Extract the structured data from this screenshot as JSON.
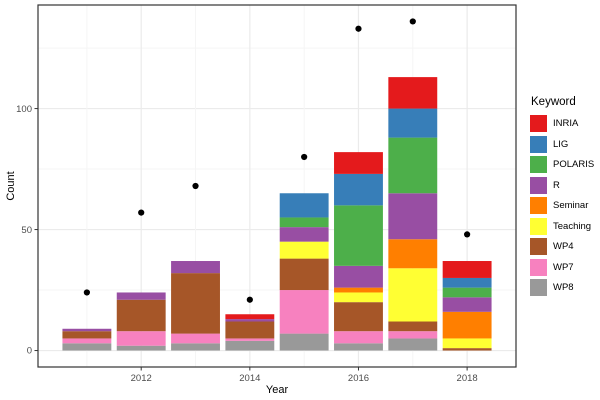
{
  "chart_data": {
    "type": "bar",
    "subtype": "stacked-bars-with-total-points",
    "title": "",
    "xlabel": "Year",
    "ylabel": "Count",
    "categories": [
      2011,
      2012,
      2013,
      2014,
      2015,
      2016,
      2017,
      2018
    ],
    "series": [
      {
        "name": "INRIA",
        "color": "#E41A1C",
        "values": [
          0,
          0,
          0,
          2,
          0,
          9,
          13,
          7
        ]
      },
      {
        "name": "LIG",
        "color": "#377EB8",
        "values": [
          0,
          0,
          0,
          0,
          10,
          13,
          12,
          4
        ]
      },
      {
        "name": "POLARIS",
        "color": "#4DAF4A",
        "values": [
          0,
          0,
          0,
          0,
          4,
          25,
          23,
          4
        ]
      },
      {
        "name": "R",
        "color": "#984EA3",
        "values": [
          1,
          3,
          5,
          1,
          6,
          9,
          19,
          6
        ]
      },
      {
        "name": "Seminar",
        "color": "#FF7F00",
        "values": [
          0,
          0,
          0,
          0,
          0,
          2,
          12,
          11
        ]
      },
      {
        "name": "Teaching",
        "color": "#FFFF33",
        "values": [
          0,
          0,
          0,
          0,
          7,
          4,
          22,
          4
        ]
      },
      {
        "name": "WP4",
        "color": "#A65628",
        "values": [
          3,
          13,
          25,
          7,
          13,
          12,
          4,
          1
        ]
      },
      {
        "name": "WP7",
        "color": "#F781BF",
        "values": [
          2,
          6,
          4,
          1,
          18,
          5,
          3,
          0
        ]
      },
      {
        "name": "WP8",
        "color": "#999999",
        "values": [
          3,
          2,
          3,
          4,
          7,
          3,
          5,
          0
        ]
      }
    ],
    "stack_order_bottom_to_top": [
      "WP8",
      "WP7",
      "WP4",
      "Teaching",
      "Seminar",
      "R",
      "POLARIS",
      "LIG",
      "INRIA"
    ],
    "points": {
      "name": "total-dots",
      "color": "#000000",
      "values": [
        24,
        57,
        68,
        21,
        80,
        133,
        136,
        48
      ]
    },
    "y_ticks": [
      0,
      50,
      100
    ],
    "y_minor_ticks": [
      25,
      75,
      125
    ],
    "x_ticks": [
      2012,
      2014,
      2016,
      2018
    ],
    "ylim": [
      -6.8,
      142.8
    ],
    "xlim": [
      2010.1,
      2018.9
    ],
    "grid": true,
    "legend_position": "right",
    "panel_border_color": "#333333",
    "major_grid_color": "#ebebeb",
    "minor_grid_color": "#f5f5f5",
    "tick_text_color": "#4d4d4d",
    "bar_width_fraction": 0.9
  },
  "legend": {
    "title": "Keyword",
    "items": [
      {
        "label": "INRIA",
        "color": "#E41A1C"
      },
      {
        "label": "LIG",
        "color": "#377EB8"
      },
      {
        "label": "POLARIS",
        "color": "#4DAF4A"
      },
      {
        "label": "R",
        "color": "#984EA3"
      },
      {
        "label": "Seminar",
        "color": "#FF7F00"
      },
      {
        "label": "Teaching",
        "color": "#FFFF33"
      },
      {
        "label": "WP4",
        "color": "#A65628"
      },
      {
        "label": "WP7",
        "color": "#F781BF"
      },
      {
        "label": "WP8",
        "color": "#999999"
      }
    ]
  }
}
